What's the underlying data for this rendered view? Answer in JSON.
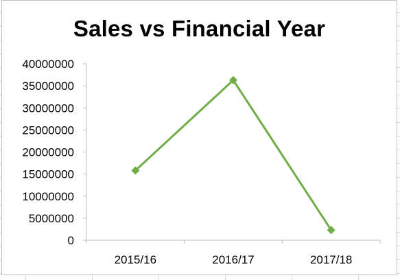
{
  "chart_data": {
    "type": "line",
    "title": "Sales vs Financial Year",
    "xlabel": "",
    "ylabel": "",
    "categories": [
      "2015/16",
      "2016/17",
      "2017/18"
    ],
    "series": [
      {
        "values": [
          15800000,
          36300000,
          2300000
        ],
        "color": "#70ad47",
        "marker": "diamond"
      }
    ],
    "ylim": [
      0,
      40000000
    ],
    "yticks": [
      0,
      5000000,
      10000000,
      15000000,
      20000000,
      25000000,
      30000000,
      35000000,
      40000000
    ],
    "grid": false,
    "legend": "none"
  }
}
